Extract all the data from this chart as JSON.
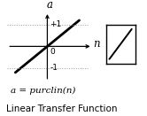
{
  "title": "Linear Transfer Function",
  "formula": "a = purclin(n)",
  "x_label": "n",
  "y_label": "a",
  "xlim": [
    -1.5,
    1.7
  ],
  "ylim": [
    -1.6,
    1.6
  ],
  "line_x": [
    -1.2,
    1.2
  ],
  "line_y": [
    -1.2,
    1.2
  ],
  "hline_y": [
    1.0,
    -1.0
  ],
  "hline_x_start": -1.5,
  "hline_x_end": 1.5,
  "background_color": "#ffffff",
  "line_color": "#000000",
  "dot_line_color": "#999999",
  "axis_color": "#000000",
  "title_fontsize": 7.5,
  "formula_fontsize": 7.5,
  "label_fontsize": 8.5,
  "tick_fontsize": 6.5
}
